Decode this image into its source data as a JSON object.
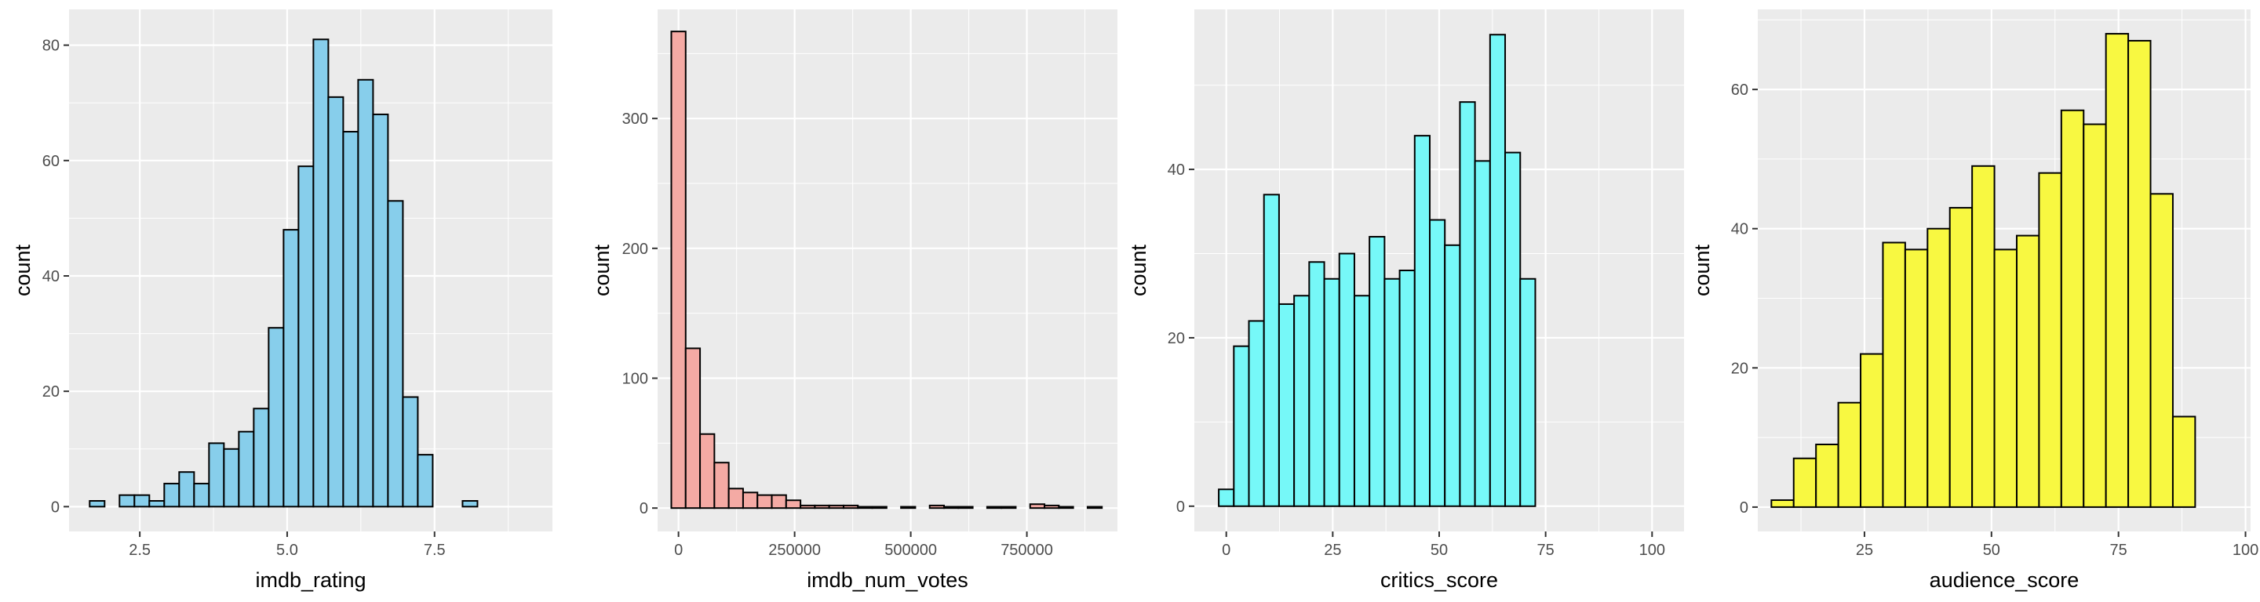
{
  "chart_data": [
    {
      "type": "bar",
      "xlabel": "imdb_rating",
      "ylabel": "count",
      "fill": "#87ceeb",
      "xlim": [
        1.3,
        9.5
      ],
      "ylim": [
        -4.3,
        86.2
      ],
      "xticks": [
        2.5,
        5.0,
        7.5
      ],
      "xtick_labels": [
        "2.5",
        "5.0",
        "7.5"
      ],
      "yticks": [
        0,
        20,
        40,
        60,
        80
      ],
      "ytick_labels": [
        "0",
        "20",
        "40",
        "60",
        "80"
      ],
      "grid": true,
      "bin_width": 0.253,
      "bin_starts": [
        1.65,
        1.903,
        2.156,
        2.409,
        2.662,
        2.915,
        3.168,
        3.421,
        3.674,
        3.927,
        4.18,
        4.433,
        4.686,
        4.939,
        5.192,
        5.445,
        5.698,
        5.951,
        6.204,
        6.457,
        6.71,
        6.963,
        7.216,
        7.469,
        7.722,
        7.975,
        8.228,
        8.481,
        8.734,
        8.987
      ],
      "values": [
        1,
        0,
        2,
        2,
        1,
        4,
        6,
        4,
        11,
        10,
        13,
        17,
        31,
        48,
        59,
        81,
        71,
        65,
        74,
        68,
        53,
        19,
        9,
        0,
        0,
        1,
        0,
        0,
        0,
        0
      ]
    },
    {
      "type": "bar",
      "xlabel": "imdb_num_votes",
      "ylabel": "count",
      "fill": "#f4aaa4",
      "xlim": [
        -45000,
        945000
      ],
      "ylim": [
        -18,
        384
      ],
      "xticks": [
        0,
        250000,
        500000,
        750000
      ],
      "xtick_labels": [
        "0",
        "250000",
        "500000",
        "750000"
      ],
      "yticks": [
        0,
        100,
        200,
        300
      ],
      "ytick_labels": [
        "0",
        "100",
        "200",
        "300"
      ],
      "grid": true,
      "bin_width": 30900,
      "bin_starts": [
        -15450,
        15450,
        46350,
        77250,
        108150,
        139050,
        169950,
        200850,
        231750,
        262650,
        293550,
        324450,
        355350,
        386250,
        417150,
        448050,
        478950,
        509850,
        540750,
        571650,
        602550,
        633450,
        664350,
        695250,
        726150,
        757050,
        787950,
        818850,
        849750,
        880650
      ],
      "values": [
        367,
        123,
        57,
        35,
        15,
        12,
        10,
        10,
        6,
        2,
        2,
        2,
        2,
        1,
        1,
        0,
        1,
        0,
        2,
        1,
        1,
        0,
        1,
        1,
        0,
        3,
        2,
        1,
        0,
        1
      ]
    },
    {
      "type": "bar",
      "xlabel": "critics_score",
      "ylabel": "count",
      "fill": "#76f8f8",
      "xlim": [
        -7.5,
        107.5
      ],
      "ylim": [
        -3,
        59
      ],
      "xticks": [
        0,
        25,
        50,
        75,
        100
      ],
      "xtick_labels": [
        "0",
        "25",
        "50",
        "75",
        "100"
      ],
      "yticks": [
        0,
        20,
        40
      ],
      "ytick_labels": [
        "0",
        "20",
        "40"
      ],
      "grid": true,
      "bin_width": 3.54,
      "bin_starts": [
        -1.77,
        1.77,
        5.31,
        8.85,
        12.39,
        15.93,
        19.47,
        23.01,
        26.55,
        30.09,
        33.63,
        37.17,
        40.71,
        44.25,
        47.79,
        51.33,
        54.87,
        58.41,
        61.95,
        65.49,
        69.03,
        72.57,
        76.11,
        79.65,
        83.19,
        86.73,
        90.27,
        93.81,
        97.35,
        100.89
      ],
      "values": [
        2,
        19,
        22,
        37,
        24,
        25,
        29,
        27,
        30,
        25,
        32,
        27,
        28,
        44,
        34,
        31,
        48,
        41,
        56,
        42,
        27,
        0,
        0,
        0,
        0,
        0,
        0,
        0,
        0,
        0
      ]
    },
    {
      "type": "bar",
      "xlabel": "audience_score",
      "ylabel": "count",
      "fill": "#f8f841",
      "xlim": [
        4,
        101
      ],
      "ylim": [
        -3.5,
        71.5
      ],
      "xticks": [
        25,
        50,
        75,
        100
      ],
      "xtick_labels": [
        "25",
        "50",
        "75",
        "100"
      ],
      "yticks": [
        0,
        20,
        40,
        60
      ],
      "ytick_labels": [
        "0",
        "20",
        "40",
        "60"
      ],
      "grid": true,
      "bin_width": 4.39,
      "bin_starts": [
        6.68,
        11.07,
        15.46,
        19.85,
        24.24,
        28.63,
        33.02,
        37.41,
        41.8,
        46.19,
        50.58,
        54.97,
        59.36,
        63.75,
        68.14,
        72.53,
        76.92,
        81.31,
        85.7,
        90.09,
        94.48
      ],
      "values": [
        1,
        7,
        9,
        15,
        22,
        38,
        37,
        40,
        43,
        49,
        37,
        39,
        48,
        57,
        55,
        68,
        67,
        45,
        13,
        0,
        0
      ]
    }
  ]
}
